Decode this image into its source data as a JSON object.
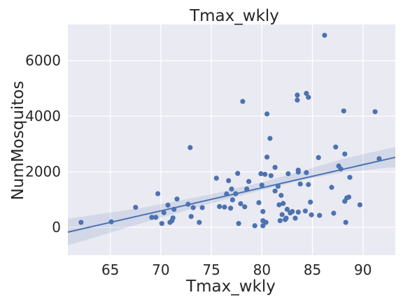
{
  "chart_data": {
    "type": "scatter",
    "title": "Tmax_wkly",
    "xlabel": "Tmax_wkly",
    "ylabel": "NumMosquitos",
    "xlim": [
      60.8,
      93.2
    ],
    "ylim": [
      -1000,
      7300
    ],
    "xticks": [
      65,
      70,
      75,
      80,
      85,
      90
    ],
    "yticks": [
      0,
      2000,
      4000,
      6000
    ],
    "grid": true,
    "colors": {
      "background": "#eaeaf2",
      "grid": "#ffffff",
      "points": "#4c72b0",
      "regression": "#4c72b0",
      "confidence_band": "#4c72b0"
    },
    "regression": {
      "x_range": [
        60.8,
        93.2
      ],
      "y_at_start": -170,
      "y_at_end": 2520,
      "ci_lower": [
        [
          60.8,
          -650
        ],
        [
          68,
          140
        ],
        [
          75,
          870
        ],
        [
          80,
          1340
        ],
        [
          84,
          1700
        ],
        [
          88,
          1980
        ],
        [
          93.2,
          2170
        ]
      ],
      "ci_upper": [
        [
          60.8,
          310
        ],
        [
          68,
          690
        ],
        [
          75,
          1190
        ],
        [
          80,
          1620
        ],
        [
          84,
          2030
        ],
        [
          88,
          2460
        ],
        [
          93.2,
          2890
        ]
      ]
    },
    "points": [
      {
        "x": 62.1,
        "y": 180
      },
      {
        "x": 65.1,
        "y": 200
      },
      {
        "x": 67.5,
        "y": 720
      },
      {
        "x": 69.1,
        "y": 360
      },
      {
        "x": 69.5,
        "y": 360
      },
      {
        "x": 69.7,
        "y": 1210
      },
      {
        "x": 70.1,
        "y": 140
      },
      {
        "x": 70.3,
        "y": 530
      },
      {
        "x": 70.7,
        "y": 800
      },
      {
        "x": 70.9,
        "y": 180
      },
      {
        "x": 71.1,
        "y": 240
      },
      {
        "x": 71.2,
        "y": 340
      },
      {
        "x": 71.3,
        "y": 650
      },
      {
        "x": 71.6,
        "y": 1020
      },
      {
        "x": 72.7,
        "y": 830
      },
      {
        "x": 72.9,
        "y": 2870
      },
      {
        "x": 73.0,
        "y": 390
      },
      {
        "x": 73.2,
        "y": 710
      },
      {
        "x": 73.8,
        "y": 180
      },
      {
        "x": 74.1,
        "y": 710
      },
      {
        "x": 75.5,
        "y": 1770
      },
      {
        "x": 75.8,
        "y": 750
      },
      {
        "x": 76.3,
        "y": 730
      },
      {
        "x": 76.5,
        "y": 1200
      },
      {
        "x": 76.7,
        "y": 1680
      },
      {
        "x": 76.9,
        "y": 690
      },
      {
        "x": 77.0,
        "y": 1380
      },
      {
        "x": 77.1,
        "y": 990
      },
      {
        "x": 77.4,
        "y": 1210
      },
      {
        "x": 77.6,
        "y": 1940
      },
      {
        "x": 77.7,
        "y": 140
      },
      {
        "x": 77.9,
        "y": 850
      },
      {
        "x": 78.1,
        "y": 4530
      },
      {
        "x": 78.3,
        "y": 740
      },
      {
        "x": 78.5,
        "y": 1380
      },
      {
        "x": 78.7,
        "y": 1650
      },
      {
        "x": 79.3,
        "y": 60
      },
      {
        "x": 79.7,
        "y": 890
      },
      {
        "x": 79.9,
        "y": 1930
      },
      {
        "x": 80.0,
        "y": 1520
      },
      {
        "x": 80.1,
        "y": 570
      },
      {
        "x": 80.1,
        "y": 240
      },
      {
        "x": 80.1,
        "y": 60
      },
      {
        "x": 80.3,
        "y": 1910
      },
      {
        "x": 80.4,
        "y": 180
      },
      {
        "x": 80.5,
        "y": 2530
      },
      {
        "x": 80.5,
        "y": 4080
      },
      {
        "x": 80.8,
        "y": 3200
      },
      {
        "x": 80.9,
        "y": 1860
      },
      {
        "x": 81.3,
        "y": 2160
      },
      {
        "x": 81.3,
        "y": 1310
      },
      {
        "x": 81.6,
        "y": 1480
      },
      {
        "x": 81.7,
        "y": 810
      },
      {
        "x": 81.8,
        "y": 240
      },
      {
        "x": 81.9,
        "y": 1150
      },
      {
        "x": 82.0,
        "y": 460
      },
      {
        "x": 82.1,
        "y": 860
      },
      {
        "x": 82.3,
        "y": 280
      },
      {
        "x": 82.4,
        "y": 330
      },
      {
        "x": 82.5,
        "y": 650
      },
      {
        "x": 82.6,
        "y": 1930
      },
      {
        "x": 82.8,
        "y": 520
      },
      {
        "x": 83.0,
        "y": 570
      },
      {
        "x": 83.3,
        "y": 330
      },
      {
        "x": 83.5,
        "y": 4760
      },
      {
        "x": 83.5,
        "y": 4580
      },
      {
        "x": 83.6,
        "y": 2060
      },
      {
        "x": 83.6,
        "y": 1990
      },
      {
        "x": 83.6,
        "y": 550
      },
      {
        "x": 83.8,
        "y": 1560
      },
      {
        "x": 84.3,
        "y": 590
      },
      {
        "x": 84.4,
        "y": 4820
      },
      {
        "x": 84.4,
        "y": 1970
      },
      {
        "x": 84.6,
        "y": 4680
      },
      {
        "x": 84.6,
        "y": 1540
      },
      {
        "x": 84.8,
        "y": 910
      },
      {
        "x": 84.9,
        "y": 450
      },
      {
        "x": 85.6,
        "y": 2510
      },
      {
        "x": 85.7,
        "y": 430
      },
      {
        "x": 86.2,
        "y": 6910
      },
      {
        "x": 86.9,
        "y": 1440
      },
      {
        "x": 87.1,
        "y": 510
      },
      {
        "x": 87.3,
        "y": 2890
      },
      {
        "x": 87.6,
        "y": 2210
      },
      {
        "x": 87.8,
        "y": 2100
      },
      {
        "x": 88.1,
        "y": 4190
      },
      {
        "x": 88.2,
        "y": 2640
      },
      {
        "x": 88.2,
        "y": 940
      },
      {
        "x": 88.3,
        "y": 180
      },
      {
        "x": 88.4,
        "y": 1060
      },
      {
        "x": 88.6,
        "y": 1090
      },
      {
        "x": 88.7,
        "y": 1800
      },
      {
        "x": 89.7,
        "y": 810
      },
      {
        "x": 91.2,
        "y": 4160
      },
      {
        "x": 91.6,
        "y": 2470
      }
    ]
  }
}
